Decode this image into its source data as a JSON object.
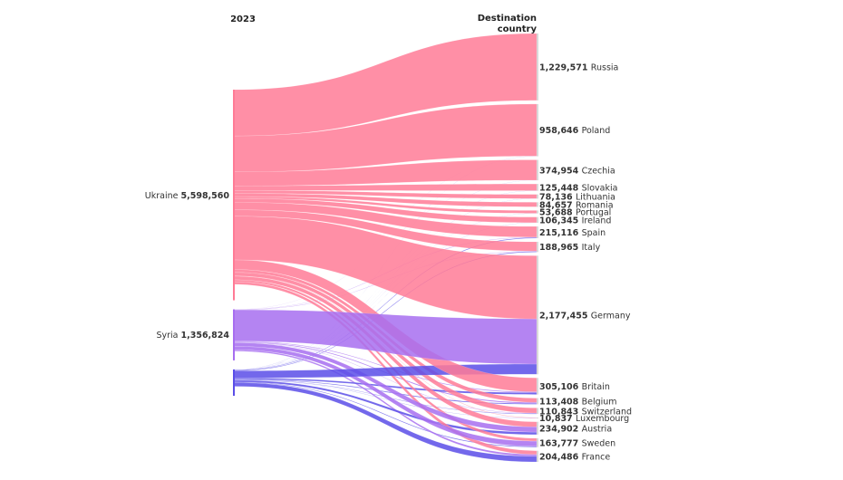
{
  "chart_data": {
    "type": "sankey",
    "source_header": "2023",
    "target_header_line1": "Destination",
    "target_header_line2": "country",
    "colors": {
      "Ukraine": "#ff7b96",
      "Syria": "#a76ef0",
      "Other": "#5b4ee8"
    },
    "sources": [
      {
        "name": "Ukraine",
        "value_label": "5,598,560",
        "value": 5598560,
        "color": "#ff7b96"
      },
      {
        "name": "Syria",
        "value_label": "1,356,824",
        "value": 1356824,
        "color": "#a76ef0"
      },
      {
        "name": "",
        "value_label": "",
        "value": 700000,
        "color": "#5b4ee8"
      }
    ],
    "targets": [
      {
        "name": "Russia",
        "value_label": "1,229,571",
        "value": 1229571
      },
      {
        "name": "Poland",
        "value_label": "958,646",
        "value": 958646
      },
      {
        "name": "Czechia",
        "value_label": "374,954",
        "value": 374954
      },
      {
        "name": "Slovakia",
        "value_label": "125,448",
        "value": 125448
      },
      {
        "name": "Lithuania",
        "value_label": "78,136",
        "value": 78136
      },
      {
        "name": "Romania",
        "value_label": "84,657",
        "value": 84657
      },
      {
        "name": "Portugal",
        "value_label": "53,688",
        "value": 53688
      },
      {
        "name": "Ireland",
        "value_label": "106,345",
        "value": 106345
      },
      {
        "name": "Spain",
        "value_label": "215,116",
        "value": 215116
      },
      {
        "name": "Italy",
        "value_label": "188,965",
        "value": 188965
      },
      {
        "name": "Germany",
        "value_label": "2,177,455",
        "value": 2177455
      },
      {
        "name": "Britain",
        "value_label": "305,106",
        "value": 305106
      },
      {
        "name": "Belgium",
        "value_label": "113,408",
        "value": 113408
      },
      {
        "name": "Switzerland",
        "value_label": "110,843",
        "value": 110843
      },
      {
        "name": "Luxembourg",
        "value_label": "10,837",
        "value": 10837
      },
      {
        "name": "Austria",
        "value_label": "234,902",
        "value": 234902
      },
      {
        "name": "Sweden",
        "value_label": "163,777",
        "value": 163777
      },
      {
        "name": "France",
        "value_label": "204,486",
        "value": 204486
      }
    ],
    "flows": [
      {
        "source": "Ukraine",
        "target": "Russia",
        "value": 1229571
      },
      {
        "source": "Ukraine",
        "target": "Poland",
        "value": 955000
      },
      {
        "source": "Ukraine",
        "target": "Czechia",
        "value": 373000
      },
      {
        "source": "Ukraine",
        "target": "Slovakia",
        "value": 124000
      },
      {
        "source": "Ukraine",
        "target": "Lithuania",
        "value": 77000
      },
      {
        "source": "Ukraine",
        "target": "Romania",
        "value": 83000
      },
      {
        "source": "Ukraine",
        "target": "Portugal",
        "value": 52000
      },
      {
        "source": "Ukraine",
        "target": "Ireland",
        "value": 104000
      },
      {
        "source": "Ukraine",
        "target": "Spain",
        "value": 196000
      },
      {
        "source": "Ukraine",
        "target": "Italy",
        "value": 170000
      },
      {
        "source": "Ukraine",
        "target": "Germany",
        "value": 1160000
      },
      {
        "source": "Ukraine",
        "target": "Britain",
        "value": 256000
      },
      {
        "source": "Ukraine",
        "target": "Belgium",
        "value": 78000
      },
      {
        "source": "Ukraine",
        "target": "Switzerland",
        "value": 94000
      },
      {
        "source": "Ukraine",
        "target": "Luxembourg",
        "value": 7000
      },
      {
        "source": "Ukraine",
        "target": "Austria",
        "value": 94000
      },
      {
        "source": "Ukraine",
        "target": "Sweden",
        "value": 54000
      },
      {
        "source": "Ukraine",
        "target": "France",
        "value": 68000
      },
      {
        "source": "Syria",
        "target": "Germany",
        "value": 830000
      },
      {
        "source": "Syria",
        "target": "Sweden",
        "value": 95000
      },
      {
        "source": "Syria",
        "target": "Austria",
        "value": 95000
      },
      {
        "source": "Syria",
        "target": "Britain",
        "value": 14000
      },
      {
        "source": "Syria",
        "target": "Belgium",
        "value": 19000
      },
      {
        "source": "Syria",
        "target": "France",
        "value": 35000
      },
      {
        "source": "Syria",
        "target": "Italy",
        "value": 6000
      },
      {
        "source": "Syria",
        "target": "Spain",
        "value": 7000
      },
      {
        "source": "Syria",
        "target": "Switzerland",
        "value": 8000
      },
      {
        "source": "Syria",
        "target": "Poland",
        "value": 1000
      },
      {
        "source": "Syria",
        "target": "Czechia",
        "value": 1000
      },
      {
        "source": "",
        "target": "Germany",
        "value": 187455
      },
      {
        "source": "",
        "target": "France",
        "value": 101486
      },
      {
        "source": "",
        "target": "Austria",
        "value": 45902
      },
      {
        "source": "",
        "target": "Britain",
        "value": 35106
      },
      {
        "source": "",
        "target": "Belgium",
        "value": 16408
      },
      {
        "source": "",
        "target": "Sweden",
        "value": 14777
      },
      {
        "source": "",
        "target": "Italy",
        "value": 12965
      },
      {
        "source": "",
        "target": "Spain",
        "value": 12116
      },
      {
        "source": "",
        "target": "Switzerland",
        "value": 8843
      },
      {
        "source": "",
        "target": "Luxembourg",
        "value": 3837
      },
      {
        "source": "",
        "target": "Poland",
        "value": 2646
      },
      {
        "source": "",
        "target": "Ireland",
        "value": 2345
      },
      {
        "source": "",
        "target": "Romania",
        "value": 1657
      },
      {
        "source": "",
        "target": "Portugal",
        "value": 1688
      },
      {
        "source": "",
        "target": "Slovakia",
        "value": 1448
      },
      {
        "source": "",
        "target": "Lithuania",
        "value": 1136
      },
      {
        "source": "",
        "target": "Czechia",
        "value": 954
      }
    ]
  }
}
